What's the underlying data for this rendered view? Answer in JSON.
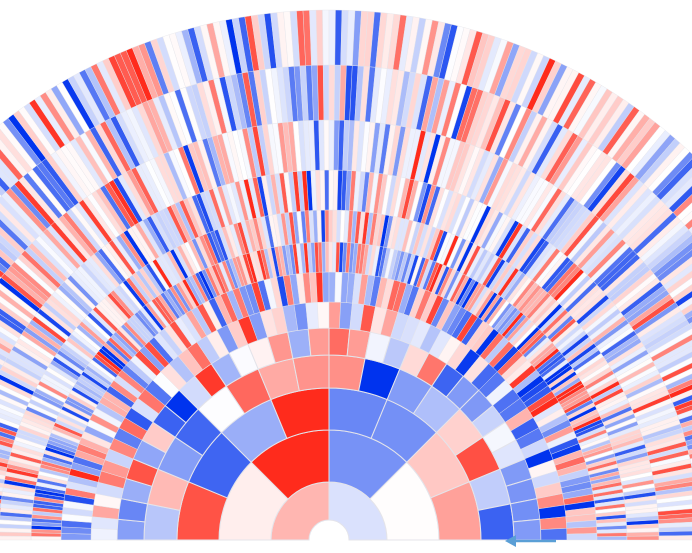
{
  "chart_data": {
    "type": "sunburst",
    "layout": "semicircle",
    "rings": 13,
    "inner_ring_segments": 2,
    "segment_multiplier_per_ring": 2,
    "value_range": [
      -1,
      1
    ],
    "colors": {
      "positive": "#ff2b1c",
      "negative": "#0033ee",
      "neutral": "#ffffff",
      "separator": "#e4e4ea"
    },
    "arrow": {
      "color": "#5a9fd6",
      "direction": "left"
    }
  }
}
